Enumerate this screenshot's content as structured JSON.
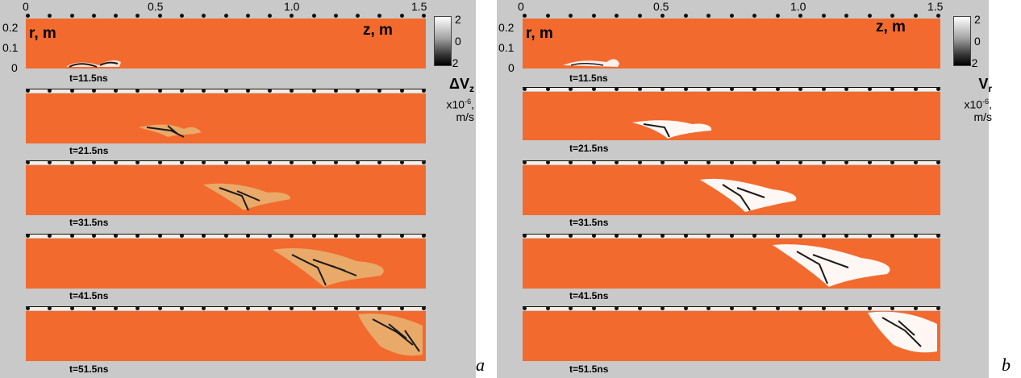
{
  "figures": [
    {
      "letter": "a",
      "colorbar": {
        "max": "2",
        "mid": "0",
        "min": "-2",
        "title_symbol": "ΔV",
        "title_sub": "z",
        "title_exp": "x10",
        "title_exp_sup": "-6",
        "title_unit": "m/s"
      },
      "axis": {
        "x_ticks": [
          "0",
          "0.5",
          "1.0",
          "1.5"
        ],
        "y_ticks": [
          "0.2",
          "0.1",
          "0"
        ],
        "r_label": "r, m",
        "z_label": "z, m"
      },
      "panels": [
        "t=11.5ns",
        "t=21.5ns",
        "t=31.5ns",
        "t=41.5ns",
        "t=51.5ns"
      ]
    },
    {
      "letter": "b",
      "colorbar": {
        "max": "2",
        "mid": "0",
        "min": "-2",
        "title_symbol": "V",
        "title_sub": "r",
        "title_exp": "x10",
        "title_exp_sup": "-6",
        "title_unit": "m/s"
      },
      "axis": {
        "x_ticks": [
          "0",
          "0.5",
          "1.0",
          "1.5"
        ],
        "y_ticks": [
          "0.2",
          "0.1",
          "0"
        ],
        "r_label": "r, m",
        "z_label": "z, m"
      },
      "panels": [
        "t=11.5ns",
        "t=21.5ns",
        "t=31.5ns",
        "t=41.5ns",
        "t=51.5ns"
      ]
    }
  ],
  "colors": {
    "field": "#f26a2e",
    "background": "#c9c9c9",
    "disturbance_dark": "#1a1a1a",
    "disturbance_light": "#ffffff"
  }
}
